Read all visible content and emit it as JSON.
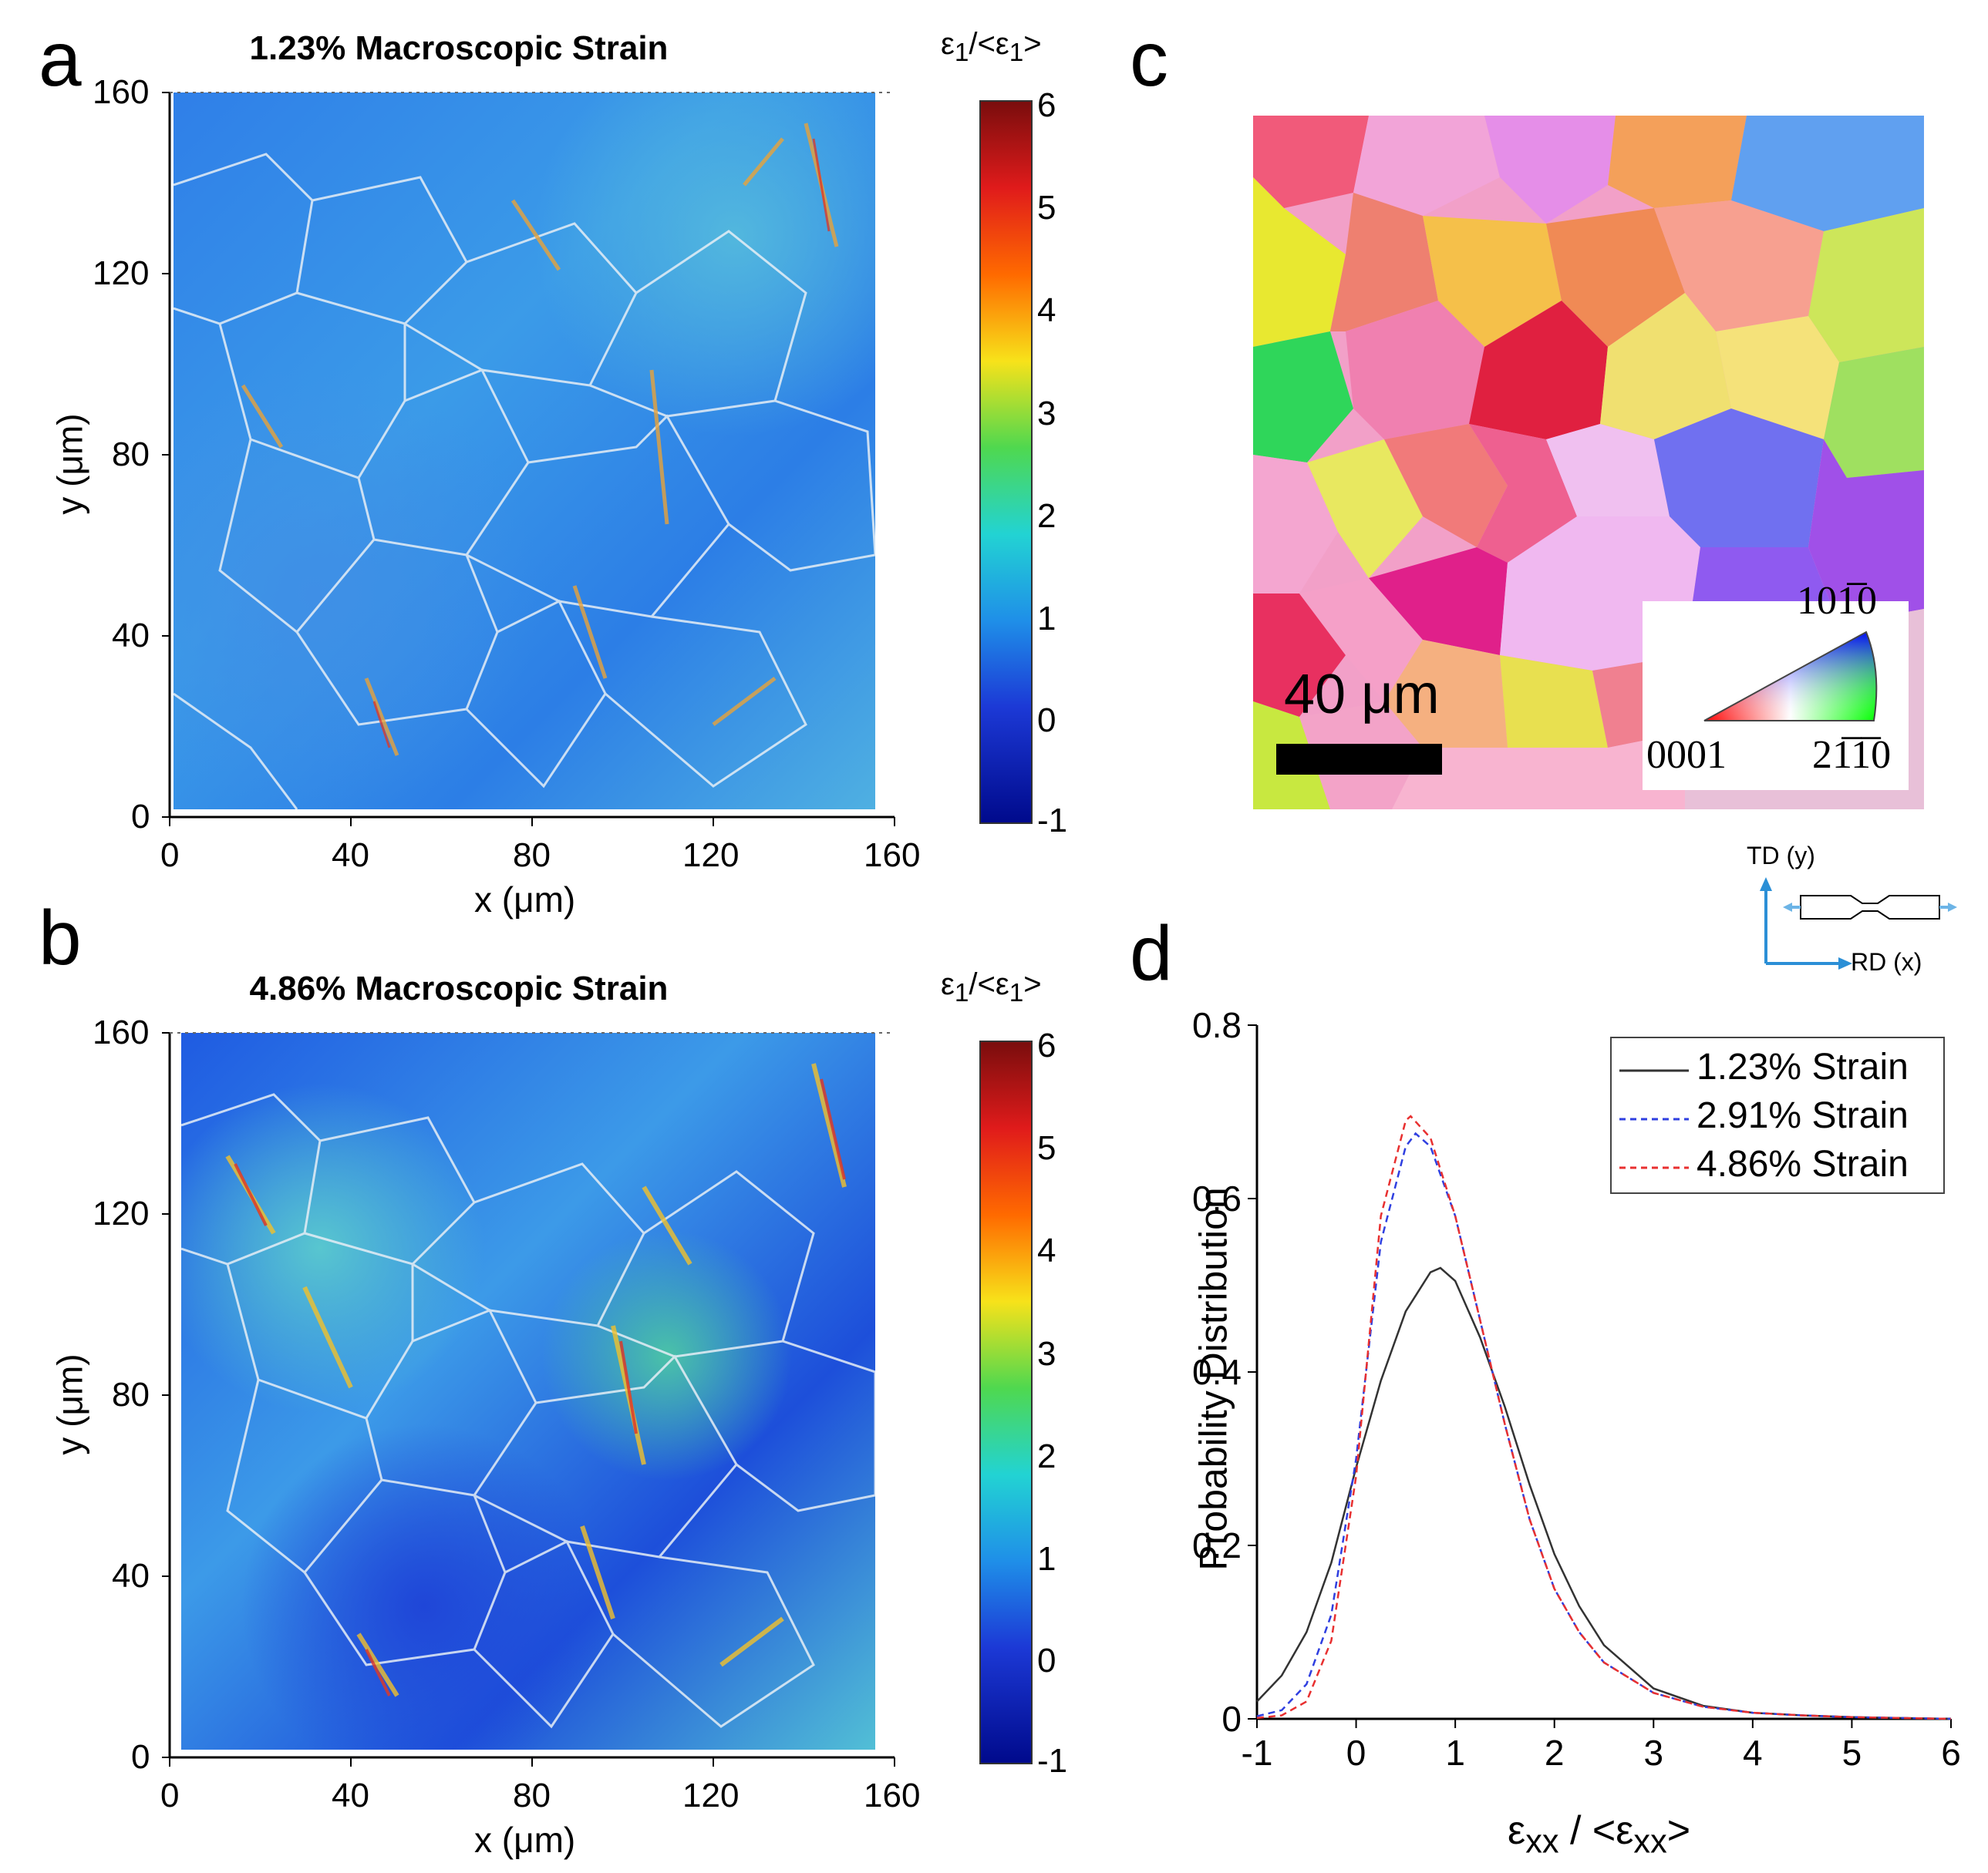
{
  "panels": {
    "a": {
      "letter": "a",
      "title": "1.23% Macroscopic Strain"
    },
    "b": {
      "letter": "b",
      "title": "4.86% Macroscopic Strain"
    },
    "c": {
      "letter": "c"
    },
    "d": {
      "letter": "d"
    }
  },
  "strain_maps": {
    "xlabel": "x (μm)",
    "ylabel": "y (μm)",
    "x_ticks": [
      "0",
      "40",
      "80",
      "120",
      "160"
    ],
    "y_ticks": [
      "0",
      "40",
      "80",
      "120",
      "160"
    ],
    "colorbar": {
      "label_main": "ε",
      "label_sub": "1",
      "label_mid": "/<ε",
      "label_sub2": "1",
      "label_end": ">",
      "ticks": [
        "6",
        "5",
        "4",
        "3",
        "2",
        "1",
        "0",
        "-1"
      ],
      "range": [
        -1,
        6
      ]
    }
  },
  "ebsd": {
    "scale_bar": "40 μm",
    "ipf_labels": {
      "top": "101̅0",
      "left": "0001",
      "right": "21̅1̅0"
    },
    "coords": {
      "y": "TD (y)",
      "x": "RD (x)"
    }
  },
  "chart_data": {
    "type": "line",
    "xlabel_main": "ε",
    "xlabel_sub": "xx",
    "xlabel_mid": " / <ε",
    "xlabel_sub2": "xx",
    "xlabel_end": ">",
    "ylabel": "Probability Distribution",
    "xlim": [
      -1,
      6
    ],
    "ylim": [
      0,
      0.8
    ],
    "x_ticks": [
      "-1",
      "0",
      "1",
      "2",
      "3",
      "4",
      "5",
      "6"
    ],
    "y_ticks": [
      "0",
      "0.2",
      "0.4",
      "0.6",
      "0.8"
    ],
    "legend_position": "top-right",
    "series": [
      {
        "name": "1.23% Strain",
        "color": "#333333",
        "style": "solid",
        "x": [
          -1,
          -0.75,
          -0.5,
          -0.25,
          0,
          0.25,
          0.5,
          0.75,
          0.85,
          1,
          1.25,
          1.5,
          1.75,
          2,
          2.25,
          2.5,
          3,
          3.5,
          4,
          4.5,
          5,
          6
        ],
        "y": [
          0.02,
          0.05,
          0.1,
          0.18,
          0.29,
          0.39,
          0.47,
          0.515,
          0.52,
          0.505,
          0.44,
          0.36,
          0.27,
          0.19,
          0.13,
          0.085,
          0.035,
          0.015,
          0.007,
          0.004,
          0.002,
          0.0
        ]
      },
      {
        "name": "2.91% Strain",
        "color": "#2f3fe0",
        "style": "dashed",
        "x": [
          -1,
          -0.75,
          -0.5,
          -0.25,
          0,
          0.25,
          0.5,
          0.6,
          0.75,
          1,
          1.25,
          1.5,
          1.75,
          2,
          2.25,
          2.5,
          3,
          3.5,
          4,
          4.5,
          5,
          6
        ],
        "y": [
          0.003,
          0.01,
          0.04,
          0.12,
          0.3,
          0.55,
          0.66,
          0.675,
          0.66,
          0.58,
          0.46,
          0.34,
          0.23,
          0.15,
          0.1,
          0.065,
          0.03,
          0.014,
          0.007,
          0.004,
          0.002,
          0.0
        ]
      },
      {
        "name": "4.86% Strain",
        "color": "#e83030",
        "style": "dashed",
        "x": [
          -1,
          -0.75,
          -0.5,
          -0.25,
          0,
          0.25,
          0.5,
          0.55,
          0.75,
          1,
          1.25,
          1.5,
          1.75,
          2,
          2.25,
          2.5,
          3,
          3.5,
          4,
          4.5,
          5,
          6
        ],
        "y": [
          0.001,
          0.004,
          0.02,
          0.09,
          0.28,
          0.58,
          0.69,
          0.695,
          0.67,
          0.58,
          0.46,
          0.34,
          0.23,
          0.15,
          0.1,
          0.065,
          0.03,
          0.014,
          0.007,
          0.004,
          0.002,
          0.0
        ]
      }
    ]
  }
}
